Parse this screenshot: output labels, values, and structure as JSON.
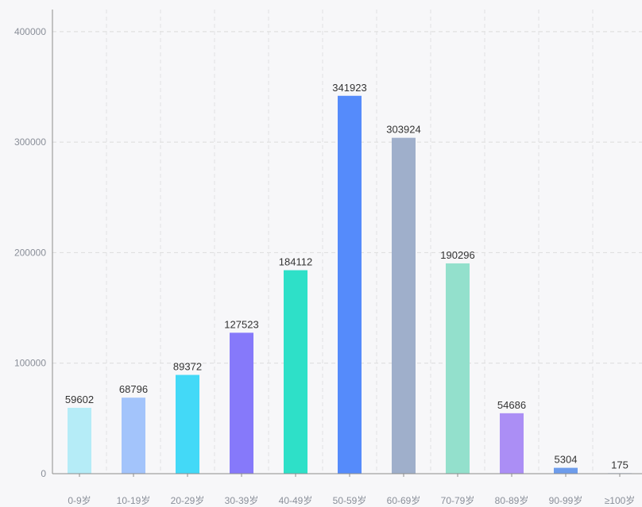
{
  "chart_data": {
    "type": "bar",
    "categories": [
      "0-9岁",
      "10-19岁",
      "20-29岁",
      "30-39岁",
      "40-49岁",
      "50-59岁",
      "60-69岁",
      "70-79岁",
      "80-89岁",
      "90-99岁",
      "≥100岁"
    ],
    "values": [
      59602,
      68796,
      89372,
      127523,
      184112,
      341923,
      303924,
      190296,
      54686,
      5304,
      175
    ],
    "colors": [
      "#b5ecf7",
      "#a3c4fb",
      "#43d9f7",
      "#8679fa",
      "#2ee0c8",
      "#558bfb",
      "#9fafcb",
      "#93e0cc",
      "#ab8ef5",
      "#6d9ceb",
      "#7fa6ec"
    ],
    "ylim": [
      0,
      420000
    ],
    "yticks": [
      "0",
      "100000",
      "200000",
      "300000",
      "400000"
    ],
    "ytick_values": [
      0,
      100000,
      200000,
      300000,
      400000
    ],
    "grid": true,
    "title": "",
    "xlabel": "",
    "ylabel": ""
  }
}
